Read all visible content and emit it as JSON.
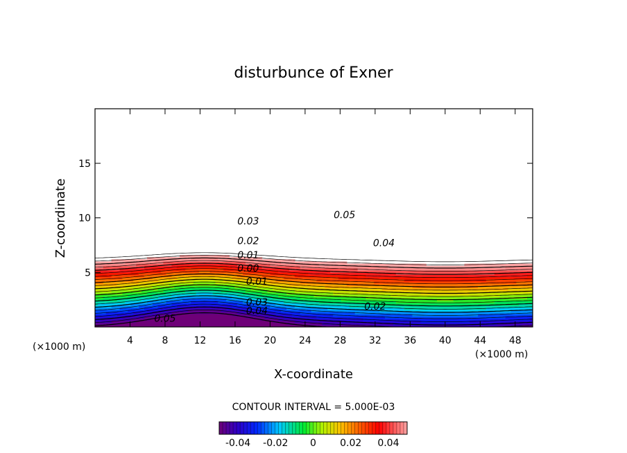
{
  "chart_data": {
    "type": "contour",
    "title": "disturbunce of Exner",
    "xlabel": "X-coordinate",
    "ylabel": "Z-coordinate",
    "x_unit_left": "(×1000 m)",
    "x_unit_right": "(×1000 m)",
    "xlim": [
      0,
      50
    ],
    "ylim": [
      0,
      20
    ],
    "x_ticks": [
      "4",
      "8",
      "12",
      "16",
      "20",
      "24",
      "28",
      "32",
      "36",
      "40",
      "44",
      "48"
    ],
    "y_ticks": [
      "5",
      "10",
      "15"
    ],
    "contour_interval_text": "CONTOUR INTERVAL = 5.000E-03",
    "contour_interval": 0.005,
    "contour_labels": [
      {
        "text": "0.05",
        "x": 28.5,
        "z": 10.3
      },
      {
        "text": "0.04",
        "x": 33.0,
        "z": 7.7
      },
      {
        "text": "0.03",
        "x": 17.5,
        "z": 9.7
      },
      {
        "text": "0.02",
        "x": 17.5,
        "z": 7.9
      },
      {
        "text": "0.01",
        "x": 17.5,
        "z": 6.6
      },
      {
        "text": "0.00",
        "x": 17.5,
        "z": 5.4
      },
      {
        "text": "0.01",
        "x": 18.5,
        "z": 4.2
      },
      {
        "text": "0.03",
        "x": 18.5,
        "z": 2.3
      },
      {
        "text": "0.02",
        "x": 32.0,
        "z": 1.9
      },
      {
        "text": "0.04",
        "x": 18.5,
        "z": 1.5
      },
      {
        "text": "0.05",
        "x": 8.0,
        "z": 0.8
      }
    ],
    "colorbar": {
      "range": [
        -0.05,
        0.05
      ],
      "ticks": [
        "-0.04",
        "-0.02",
        "0",
        "0.02",
        "0.04"
      ],
      "tick_values": [
        -0.04,
        -0.02,
        0,
        0.02,
        0.04
      ]
    }
  }
}
